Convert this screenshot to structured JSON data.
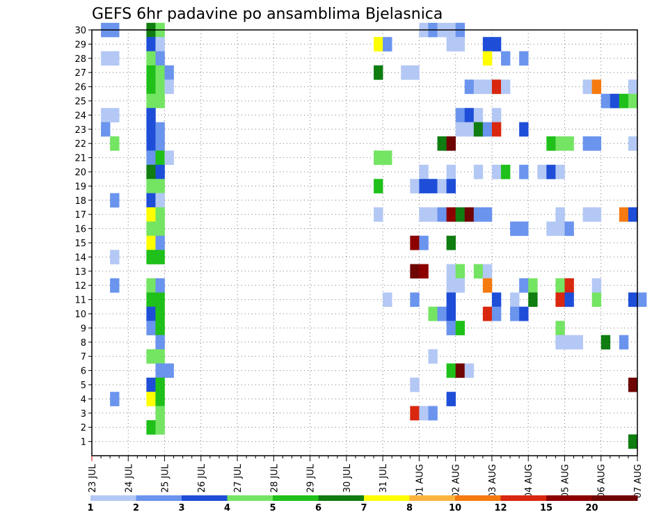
{
  "chart_data": {
    "type": "heatmap",
    "title": "GEFS 6hr padavine po ansamblima Bjelasnica",
    "x_tick_labels": [
      "23 JUL",
      "24 JUL",
      "25 JUL",
      "26 JUL",
      "27 JUL",
      "28 JUL",
      "29 JUL",
      "30 JUL",
      "31 JUL",
      "01 AUG",
      "02 AUG",
      "03 AUG",
      "04 AUG",
      "05 AUG",
      "06 AUG",
      "07 AUG"
    ],
    "y_tick_labels": [
      "1",
      "2",
      "3",
      "4",
      "5",
      "6",
      "7",
      "8",
      "9",
      "10",
      "11",
      "12",
      "13",
      "14",
      "15",
      "16",
      "17",
      "18",
      "19",
      "20",
      "21",
      "22",
      "23",
      "24",
      "25",
      "26",
      "27",
      "28",
      "29",
      "30"
    ],
    "x_axis": {
      "start": "23 JUL 00Z",
      "end": "07 AUG 00Z",
      "step": "6 hr"
    },
    "y_axis": {
      "min": 0,
      "max": 30,
      "label": ""
    },
    "grid": true,
    "colorbar": {
      "labels": [
        "1",
        "2",
        "3",
        "4",
        "5",
        "6",
        "7",
        "8",
        "10",
        "12",
        "15",
        "20"
      ],
      "colors": [
        "#b4c8f5",
        "#6a94ed",
        "#1e4ed8",
        "#74e463",
        "#1fc01a",
        "#0f7d10",
        "#ffff00",
        "#fdb43e",
        "#f57a10",
        "#d9280f",
        "#8c0000",
        "#6e0404"
      ]
    },
    "cells_format": "[ensemble_member, step_index_from_23JUL00Z, color_class_1_to_12]",
    "cells": [
      [
        30,
        1,
        2
      ],
      [
        30,
        2,
        2
      ],
      [
        30,
        6,
        6
      ],
      [
        30,
        7,
        4
      ],
      [
        30,
        36,
        1
      ],
      [
        30,
        37,
        2
      ],
      [
        30,
        38,
        1
      ],
      [
        30,
        39,
        1
      ],
      [
        30,
        40,
        2
      ],
      [
        29,
        6,
        3
      ],
      [
        29,
        7,
        1
      ],
      [
        29,
        31,
        7
      ],
      [
        29,
        32,
        2
      ],
      [
        29,
        39,
        1
      ],
      [
        29,
        40,
        1
      ],
      [
        29,
        43,
        3
      ],
      [
        29,
        44,
        3
      ],
      [
        28,
        1,
        1
      ],
      [
        28,
        2,
        1
      ],
      [
        28,
        6,
        4
      ],
      [
        28,
        7,
        2
      ],
      [
        28,
        43,
        7
      ],
      [
        28,
        45,
        2
      ],
      [
        28,
        47,
        2
      ],
      [
        27,
        6,
        5
      ],
      [
        27,
        7,
        4
      ],
      [
        27,
        8,
        2
      ],
      [
        27,
        31,
        6
      ],
      [
        27,
        34,
        1
      ],
      [
        27,
        35,
        1
      ],
      [
        26,
        6,
        5
      ],
      [
        26,
        7,
        4
      ],
      [
        26,
        8,
        1
      ],
      [
        26,
        41,
        2
      ],
      [
        26,
        42,
        1
      ],
      [
        26,
        43,
        1
      ],
      [
        26,
        44,
        10
      ],
      [
        26,
        45,
        1
      ],
      [
        26,
        54,
        1
      ],
      [
        26,
        55,
        9
      ],
      [
        26,
        59,
        1
      ],
      [
        25,
        6,
        4
      ],
      [
        25,
        7,
        4
      ],
      [
        25,
        56,
        2
      ],
      [
        25,
        57,
        3
      ],
      [
        25,
        58,
        5
      ],
      [
        25,
        59,
        4
      ],
      [
        24,
        1,
        1
      ],
      [
        24,
        2,
        1
      ],
      [
        24,
        6,
        3
      ],
      [
        24,
        40,
        2
      ],
      [
        24,
        41,
        3
      ],
      [
        24,
        42,
        1
      ],
      [
        24,
        44,
        1
      ],
      [
        23,
        1,
        2
      ],
      [
        23,
        6,
        3
      ],
      [
        23,
        7,
        2
      ],
      [
        23,
        40,
        1
      ],
      [
        23,
        41,
        1
      ],
      [
        23,
        42,
        6
      ],
      [
        23,
        43,
        2
      ],
      [
        23,
        44,
        10
      ],
      [
        23,
        47,
        3
      ],
      [
        22,
        2,
        4
      ],
      [
        22,
        6,
        3
      ],
      [
        22,
        7,
        2
      ],
      [
        22,
        38,
        6
      ],
      [
        22,
        39,
        12
      ],
      [
        22,
        50,
        5
      ],
      [
        22,
        51,
        4
      ],
      [
        22,
        52,
        4
      ],
      [
        22,
        54,
        2
      ],
      [
        22,
        55,
        2
      ],
      [
        22,
        59,
        1
      ],
      [
        21,
        6,
        2
      ],
      [
        21,
        7,
        5
      ],
      [
        21,
        8,
        1
      ],
      [
        21,
        31,
        4
      ],
      [
        21,
        32,
        4
      ],
      [
        20,
        6,
        6
      ],
      [
        20,
        7,
        3
      ],
      [
        20,
        36,
        1
      ],
      [
        20,
        39,
        1
      ],
      [
        20,
        42,
        1
      ],
      [
        20,
        44,
        1
      ],
      [
        20,
        45,
        5
      ],
      [
        20,
        47,
        2
      ],
      [
        20,
        49,
        1
      ],
      [
        20,
        50,
        3
      ],
      [
        20,
        51,
        1
      ],
      [
        19,
        6,
        4
      ],
      [
        19,
        7,
        4
      ],
      [
        19,
        31,
        5
      ],
      [
        19,
        35,
        1
      ],
      [
        19,
        36,
        3
      ],
      [
        19,
        37,
        3
      ],
      [
        19,
        38,
        1
      ],
      [
        19,
        39,
        3
      ],
      [
        18,
        2,
        2
      ],
      [
        18,
        6,
        3
      ],
      [
        18,
        7,
        1
      ],
      [
        17,
        6,
        7
      ],
      [
        17,
        7,
        4
      ],
      [
        17,
        31,
        1
      ],
      [
        17,
        36,
        1
      ],
      [
        17,
        37,
        1
      ],
      [
        17,
        38,
        2
      ],
      [
        17,
        39,
        11
      ],
      [
        17,
        40,
        6
      ],
      [
        17,
        41,
        12
      ],
      [
        17,
        42,
        2
      ],
      [
        17,
        43,
        2
      ],
      [
        17,
        51,
        1
      ],
      [
        17,
        54,
        1
      ],
      [
        17,
        55,
        1
      ],
      [
        17,
        58,
        9
      ],
      [
        17,
        59,
        3
      ],
      [
        16,
        6,
        4
      ],
      [
        16,
        7,
        4
      ],
      [
        16,
        46,
        2
      ],
      [
        16,
        47,
        2
      ],
      [
        16,
        50,
        1
      ],
      [
        16,
        51,
        1
      ],
      [
        16,
        52,
        2
      ],
      [
        15,
        6,
        7
      ],
      [
        15,
        7,
        2
      ],
      [
        15,
        35,
        11
      ],
      [
        15,
        36,
        2
      ],
      [
        15,
        39,
        6
      ],
      [
        14,
        2,
        1
      ],
      [
        14,
        6,
        5
      ],
      [
        14,
        7,
        5
      ],
      [
        13,
        35,
        12
      ],
      [
        13,
        36,
        11
      ],
      [
        13,
        39,
        1
      ],
      [
        13,
        40,
        4
      ],
      [
        13,
        42,
        4
      ],
      [
        13,
        43,
        1
      ],
      [
        12,
        2,
        2
      ],
      [
        12,
        6,
        4
      ],
      [
        12,
        7,
        2
      ],
      [
        12,
        39,
        1
      ],
      [
        12,
        40,
        1
      ],
      [
        12,
        43,
        9
      ],
      [
        12,
        47,
        2
      ],
      [
        12,
        48,
        4
      ],
      [
        12,
        51,
        4
      ],
      [
        12,
        52,
        10
      ],
      [
        12,
        55,
        1
      ],
      [
        11,
        6,
        5
      ],
      [
        11,
        7,
        5
      ],
      [
        11,
        32,
        1
      ],
      [
        11,
        35,
        2
      ],
      [
        11,
        39,
        3
      ],
      [
        11,
        44,
        3
      ],
      [
        11,
        46,
        1
      ],
      [
        11,
        48,
        6
      ],
      [
        11,
        51,
        10
      ],
      [
        11,
        52,
        3
      ],
      [
        11,
        55,
        4
      ],
      [
        11,
        59,
        3
      ],
      [
        11,
        60,
        2
      ],
      [
        10,
        6,
        3
      ],
      [
        10,
        7,
        5
      ],
      [
        10,
        37,
        4
      ],
      [
        10,
        38,
        2
      ],
      [
        10,
        39,
        3
      ],
      [
        10,
        43,
        10
      ],
      [
        10,
        44,
        2
      ],
      [
        10,
        46,
        2
      ],
      [
        10,
        47,
        3
      ],
      [
        9,
        6,
        2
      ],
      [
        9,
        7,
        5
      ],
      [
        9,
        39,
        2
      ],
      [
        9,
        40,
        5
      ],
      [
        9,
        51,
        4
      ],
      [
        8,
        7,
        2
      ],
      [
        8,
        51,
        1
      ],
      [
        8,
        52,
        1
      ],
      [
        8,
        53,
        1
      ],
      [
        8,
        56,
        6
      ],
      [
        8,
        58,
        2
      ],
      [
        7,
        6,
        4
      ],
      [
        7,
        7,
        4
      ],
      [
        7,
        37,
        1
      ],
      [
        6,
        7,
        2
      ],
      [
        6,
        8,
        2
      ],
      [
        6,
        39,
        5
      ],
      [
        6,
        40,
        12
      ],
      [
        6,
        41,
        1
      ],
      [
        5,
        6,
        3
      ],
      [
        5,
        7,
        5
      ],
      [
        5,
        35,
        1
      ],
      [
        5,
        59,
        12
      ],
      [
        4,
        6,
        7
      ],
      [
        4,
        7,
        5
      ],
      [
        4,
        2,
        2
      ],
      [
        4,
        39,
        3
      ],
      [
        3,
        7,
        4
      ],
      [
        3,
        35,
        10
      ],
      [
        3,
        36,
        1
      ],
      [
        3,
        37,
        2
      ],
      [
        2,
        6,
        5
      ],
      [
        2,
        7,
        4
      ],
      [
        1,
        59,
        6
      ]
    ]
  }
}
